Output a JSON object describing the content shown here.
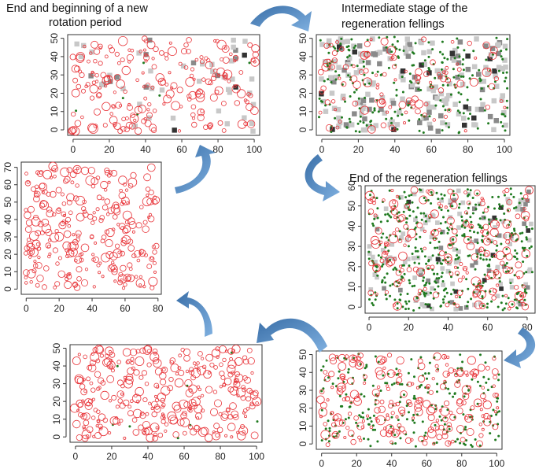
{
  "captions": {
    "panel_1_line_1": "End and beginning of a new",
    "panel_1_line_2": "rotation period",
    "panel_2_line_1": "Intermediate stage of the",
    "panel_2_line_2": "regeneration fellings",
    "panel_3": "End of the regeneration fellings"
  },
  "colors": {
    "tree_circle": "#e8353a",
    "seedling": "#1f7a1f",
    "gap_light": "#c8c8c8",
    "gap_mid": "#8a8a8a",
    "gap_dark": "#333333",
    "arrow": "#4a86c5"
  },
  "chart_data": [
    {
      "id": "intermediate",
      "type": "scatter",
      "title": "Intermediate stage of the regeneration fellings",
      "x_ticks": [
        "0",
        "20",
        "40",
        "60",
        "80",
        "100"
      ],
      "y_ticks": [
        "0",
        "10",
        "20",
        "30",
        "40",
        "50"
      ],
      "xlim": [
        -3,
        103
      ],
      "ylim": [
        -3,
        52
      ],
      "trees": 110,
      "seedlings": 230,
      "gaps": 200
    },
    {
      "id": "end_regeneration",
      "type": "scatter",
      "title": "End of the regeneration fellings",
      "x_ticks": [
        "0",
        "20",
        "40",
        "60",
        "80"
      ],
      "y_ticks": [
        "0",
        "10",
        "20",
        "30",
        "40",
        "50",
        "60"
      ],
      "xlim": [
        -2,
        84
      ],
      "ylim": [
        -3,
        60
      ],
      "trees": 190,
      "seedlings": 460,
      "gaps": 140
    },
    {
      "id": "young_stand",
      "type": "scatter",
      "title": "",
      "x_ticks": [
        "0",
        "20",
        "40",
        "60",
        "80",
        "100"
      ],
      "y_ticks": [
        "0",
        "10",
        "20",
        "30",
        "40",
        "50"
      ],
      "xlim": [
        -3,
        103
      ],
      "ylim": [
        -3,
        52
      ],
      "trees": 230,
      "seedlings": 240,
      "gaps": 0
    },
    {
      "id": "mature_stand",
      "type": "scatter",
      "title": "",
      "x_ticks": [
        "0",
        "20",
        "40",
        "60",
        "80",
        "100"
      ],
      "y_ticks": [
        "0",
        "10",
        "20",
        "30",
        "40",
        "50"
      ],
      "xlim": [
        -3,
        103
      ],
      "ylim": [
        -3,
        52
      ],
      "trees": 330,
      "seedlings": 8,
      "gaps": 0
    },
    {
      "id": "final_stand",
      "type": "scatter",
      "title": "",
      "x_ticks": [
        "0",
        "20",
        "40",
        "60",
        "80"
      ],
      "y_ticks": [
        "0",
        "10",
        "20",
        "30",
        "40",
        "50",
        "60",
        "70"
      ],
      "xlim": [
        -3,
        82
      ],
      "ylim": [
        -3,
        73
      ],
      "trees": 290,
      "seedlings": 0,
      "gaps": 0
    },
    {
      "id": "new_rotation",
      "type": "scatter",
      "title": "End and beginning of a new rotation period",
      "x_ticks": [
        "0",
        "20",
        "40",
        "60",
        "80",
        "100"
      ],
      "y_ticks": [
        "0",
        "10",
        "20",
        "30",
        "40",
        "50"
      ],
      "xlim": [
        -3,
        103
      ],
      "ylim": [
        -3,
        52
      ],
      "trees": 220,
      "seedlings": 6,
      "gaps": 50
    }
  ]
}
